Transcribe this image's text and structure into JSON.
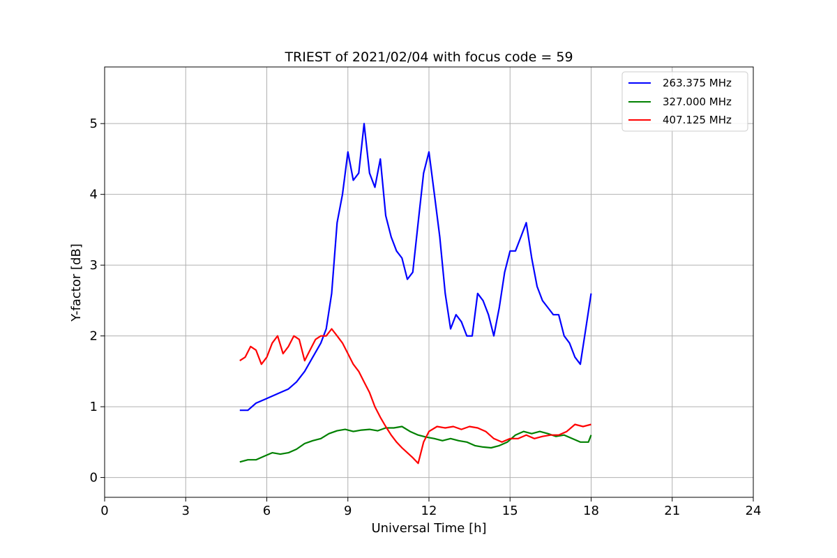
{
  "chart_data": {
    "type": "line",
    "title": "TRIEST of 2021/02/04 with focus code = 59",
    "xlabel": "Universal Time [h]",
    "ylabel": "Y-factor [dB]",
    "xlim": [
      0,
      24
    ],
    "ylim": [
      -0.28,
      5.8
    ],
    "xticks": [
      0,
      3,
      6,
      9,
      12,
      15,
      18,
      21,
      24
    ],
    "yticks": [
      0,
      1,
      2,
      3,
      4,
      5
    ],
    "grid": true,
    "legend_position": "top-right",
    "series": [
      {
        "name": "263.375 MHz",
        "color": "#0000ff",
        "x": [
          5.0,
          5.3,
          5.6,
          5.9,
          6.2,
          6.5,
          6.8,
          7.1,
          7.4,
          7.7,
          8.0,
          8.2,
          8.4,
          8.6,
          8.8,
          9.0,
          9.2,
          9.4,
          9.6,
          9.8,
          10.0,
          10.2,
          10.4,
          10.6,
          10.8,
          11.0,
          11.2,
          11.4,
          11.6,
          11.8,
          12.0,
          12.2,
          12.4,
          12.6,
          12.8,
          13.0,
          13.2,
          13.4,
          13.6,
          13.8,
          14.0,
          14.2,
          14.4,
          14.6,
          14.8,
          15.0,
          15.2,
          15.4,
          15.6,
          15.8,
          16.0,
          16.2,
          16.4,
          16.6,
          16.8,
          17.0,
          17.2,
          17.4,
          17.6,
          17.8,
          18.0
        ],
        "y": [
          0.95,
          0.95,
          1.05,
          1.1,
          1.15,
          1.2,
          1.25,
          1.35,
          1.5,
          1.7,
          1.9,
          2.1,
          2.6,
          3.6,
          4.0,
          4.6,
          4.2,
          4.3,
          5.0,
          4.3,
          4.1,
          4.5,
          3.7,
          3.4,
          3.2,
          3.1,
          2.8,
          2.9,
          3.6,
          4.3,
          4.6,
          4.0,
          3.4,
          2.6,
          2.1,
          2.3,
          2.2,
          2.0,
          2.0,
          2.6,
          2.5,
          2.3,
          2.0,
          2.4,
          2.9,
          3.2,
          3.2,
          3.4,
          3.6,
          3.1,
          2.7,
          2.5,
          2.4,
          2.3,
          2.3,
          2.0,
          1.9,
          1.7,
          1.6,
          2.1,
          2.6
        ]
      },
      {
        "name": "327.000 MHz",
        "color": "#008000",
        "x": [
          5.0,
          5.3,
          5.6,
          5.9,
          6.2,
          6.5,
          6.8,
          7.1,
          7.4,
          7.7,
          8.0,
          8.3,
          8.6,
          8.9,
          9.2,
          9.5,
          9.8,
          10.1,
          10.4,
          10.7,
          11.0,
          11.3,
          11.6,
          11.9,
          12.2,
          12.5,
          12.8,
          13.1,
          13.4,
          13.7,
          14.0,
          14.3,
          14.6,
          14.9,
          15.2,
          15.5,
          15.8,
          16.1,
          16.4,
          16.7,
          17.0,
          17.3,
          17.6,
          17.9,
          18.0
        ],
        "y": [
          0.22,
          0.25,
          0.25,
          0.3,
          0.35,
          0.33,
          0.35,
          0.4,
          0.48,
          0.52,
          0.55,
          0.62,
          0.66,
          0.68,
          0.65,
          0.67,
          0.68,
          0.66,
          0.7,
          0.7,
          0.72,
          0.65,
          0.6,
          0.57,
          0.55,
          0.52,
          0.55,
          0.52,
          0.5,
          0.45,
          0.43,
          0.42,
          0.45,
          0.5,
          0.6,
          0.65,
          0.62,
          0.65,
          0.62,
          0.58,
          0.6,
          0.55,
          0.5,
          0.5,
          0.6
        ]
      },
      {
        "name": "407.125 MHz",
        "color": "#ff0000",
        "x": [
          5.0,
          5.2,
          5.4,
          5.6,
          5.8,
          6.0,
          6.2,
          6.4,
          6.6,
          6.8,
          7.0,
          7.2,
          7.4,
          7.6,
          7.8,
          8.0,
          8.2,
          8.4,
          8.6,
          8.8,
          9.0,
          9.2,
          9.4,
          9.6,
          9.8,
          10.0,
          10.2,
          10.4,
          10.6,
          10.8,
          11.0,
          11.2,
          11.4,
          11.6,
          11.8,
          12.0,
          12.3,
          12.6,
          12.9,
          13.2,
          13.5,
          13.8,
          14.1,
          14.4,
          14.7,
          15.0,
          15.3,
          15.6,
          15.9,
          16.2,
          16.5,
          16.8,
          17.1,
          17.4,
          17.7,
          18.0
        ],
        "y": [
          1.65,
          1.7,
          1.85,
          1.8,
          1.6,
          1.7,
          1.9,
          2.0,
          1.75,
          1.85,
          2.0,
          1.95,
          1.65,
          1.8,
          1.95,
          2.0,
          2.0,
          2.1,
          2.0,
          1.9,
          1.75,
          1.6,
          1.5,
          1.35,
          1.2,
          1.0,
          0.85,
          0.72,
          0.6,
          0.5,
          0.42,
          0.35,
          0.28,
          0.2,
          0.5,
          0.65,
          0.72,
          0.7,
          0.72,
          0.68,
          0.72,
          0.7,
          0.65,
          0.55,
          0.5,
          0.55,
          0.55,
          0.6,
          0.55,
          0.58,
          0.6,
          0.6,
          0.65,
          0.75,
          0.72,
          0.75
        ]
      }
    ]
  }
}
